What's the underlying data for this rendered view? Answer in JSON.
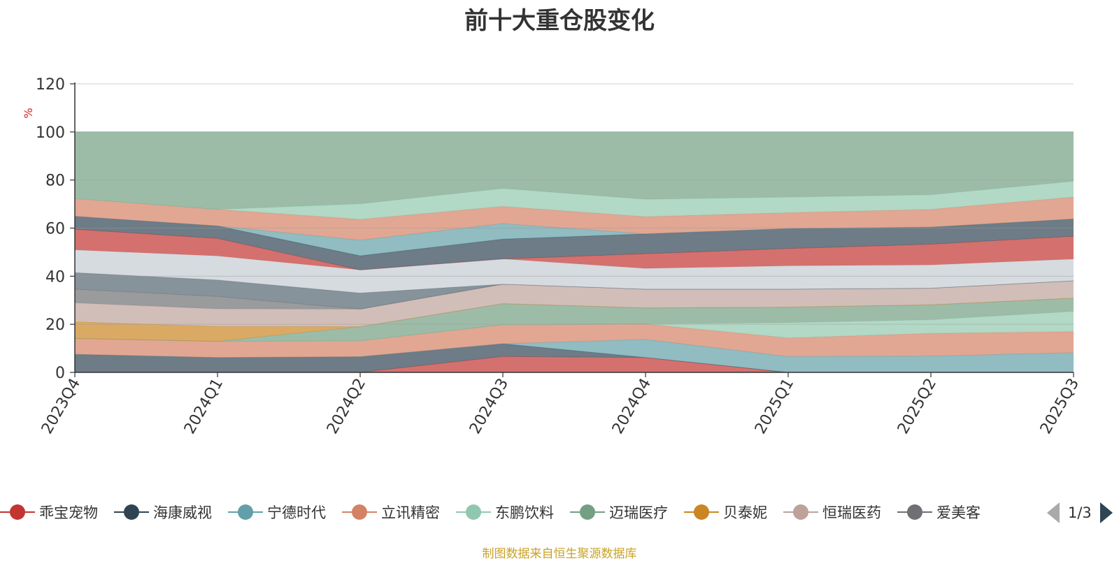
{
  "chart_data": {
    "type": "area",
    "title": "前十大重仓股变化",
    "ylabel": "%",
    "ylim": [
      0,
      120
    ],
    "yticks": [
      0,
      20,
      40,
      60,
      80,
      100,
      120
    ],
    "stacked": true,
    "categories": [
      "2023Q4",
      "2024Q1",
      "2024Q2",
      "2024Q3",
      "2024Q4",
      "2025Q1",
      "2025Q2",
      "2025Q3"
    ],
    "layers": [
      {
        "color": "#c23531",
        "bottom": [
          0,
          0,
          0,
          0,
          0,
          0,
          0,
          0
        ],
        "top": [
          0,
          0,
          0,
          6.6,
          6.2,
          0,
          0,
          0
        ]
      },
      {
        "color": "#2f4554",
        "bottom": [
          0,
          0,
          0,
          6.6,
          6.2,
          0,
          0,
          0
        ],
        "top": [
          7.5,
          6.2,
          6.5,
          11.9,
          6.2,
          0,
          0,
          0
        ]
      },
      {
        "color": "#61a0a8",
        "bottom": [
          7.5,
          6.2,
          6.5,
          11.9,
          6.2,
          0,
          0,
          0
        ],
        "top": [
          7.5,
          6.2,
          6.5,
          11.9,
          13.7,
          6.6,
          6.8,
          8.2
        ]
      },
      {
        "color": "#d48265",
        "bottom": [
          7.5,
          6.2,
          6.5,
          11.9,
          13.7,
          6.6,
          6.8,
          8.2
        ],
        "top": [
          14.1,
          12.9,
          13.1,
          19.8,
          20.1,
          14.3,
          16.2,
          16.9
        ]
      },
      {
        "color": "#91c7ae",
        "bottom": [
          14.1,
          12.9,
          13.1,
          19.8,
          20.1,
          14.3,
          16.2,
          16.9
        ],
        "top": [
          14.1,
          12.9,
          13.1,
          19.8,
          20.1,
          20.7,
          21.9,
          25.4
        ]
      },
      {
        "color": "#749f83",
        "bottom": [
          14.1,
          12.9,
          13.1,
          19.8,
          20.1,
          20.7,
          21.9,
          25.4
        ],
        "top": [
          14.1,
          12.9,
          19.0,
          28.6,
          26.8,
          27.1,
          28.1,
          30.9
        ]
      },
      {
        "color": "#ca8622",
        "bottom": [
          14.1,
          12.9,
          19.0,
          28.6,
          26.8,
          27.1,
          28.1,
          30.9
        ],
        "top": [
          21.0,
          19.1,
          19.0,
          28.6,
          26.8,
          27.1,
          28.1,
          30.9
        ]
      },
      {
        "color": "#bda29a",
        "bottom": [
          21.0,
          19.1,
          19.0,
          28.6,
          26.8,
          27.1,
          28.1,
          30.9
        ],
        "top": [
          28.9,
          26.4,
          26.3,
          36.7,
          34.6,
          34.6,
          35.0,
          38.1
        ]
      },
      {
        "color": "#6e7074",
        "bottom": [
          28.9,
          26.4,
          26.3,
          36.7,
          34.6,
          34.6,
          35.0,
          38.1
        ],
        "top": [
          34.6,
          31.6,
          26.3,
          36.7,
          34.6,
          34.6,
          35.0,
          38.1
        ]
      },
      {
        "color": "#546570",
        "bottom": [
          34.6,
          31.6,
          26.3,
          36.7,
          34.6,
          34.6,
          35.0,
          38.1
        ],
        "top": [
          41.5,
          38.4,
          33.0,
          36.7,
          34.6,
          34.6,
          35.0,
          38.1
        ]
      },
      {
        "color": "#c4ccd3",
        "bottom": [
          41.5,
          38.4,
          33.0,
          36.7,
          34.6,
          34.6,
          35.0,
          38.1
        ],
        "top": [
          50.9,
          48.4,
          42.6,
          47.2,
          43.2,
          44.3,
          44.7,
          47.1
        ]
      },
      {
        "color": "#c23531",
        "bottom": [
          50.9,
          48.4,
          42.6,
          47.2,
          43.2,
          44.3,
          44.7,
          47.1
        ],
        "top": [
          59.5,
          55.7,
          42.6,
          47.2,
          49.3,
          51.5,
          53.3,
          56.6
        ]
      },
      {
        "color": "#2f4554",
        "bottom": [
          59.5,
          55.7,
          42.6,
          47.2,
          49.3,
          51.5,
          53.3,
          56.6
        ],
        "top": [
          64.9,
          60.9,
          48.5,
          55.4,
          57.6,
          59.8,
          60.4,
          63.8
        ]
      },
      {
        "color": "#61a0a8",
        "bottom": [
          64.9,
          60.9,
          48.5,
          55.4,
          57.6,
          59.8,
          60.4,
          63.8
        ],
        "top": [
          64.9,
          60.9,
          55.0,
          61.9,
          57.6,
          59.8,
          60.4,
          63.8
        ]
      },
      {
        "color": "#d48265",
        "bottom": [
          64.9,
          60.9,
          55.0,
          61.9,
          57.6,
          59.8,
          60.4,
          63.8
        ],
        "top": [
          72.3,
          67.8,
          63.6,
          69.0,
          64.7,
          66.4,
          67.8,
          72.9
        ]
      },
      {
        "color": "#91c7ae",
        "bottom": [
          72.3,
          67.8,
          63.6,
          69.0,
          64.7,
          66.4,
          67.8,
          72.9
        ],
        "top": [
          72.3,
          67.8,
          70.1,
          76.5,
          72.0,
          72.9,
          73.9,
          79.5
        ]
      },
      {
        "color": "#749f83",
        "bottom": [
          72.3,
          67.8,
          70.1,
          76.5,
          72.0,
          72.9,
          73.9,
          79.5
        ],
        "top": [
          100,
          100,
          100,
          100,
          100,
          100,
          100,
          100
        ]
      }
    ],
    "legend": [
      {
        "name": "乖宝宠物",
        "color": "#c23531"
      },
      {
        "name": "海康威视",
        "color": "#2f4554"
      },
      {
        "name": "宁德时代",
        "color": "#61a0a8"
      },
      {
        "name": "立讯精密",
        "color": "#d48265"
      },
      {
        "name": "东鹏饮料",
        "color": "#91c7ae"
      },
      {
        "name": "迈瑞医疗",
        "color": "#749f83"
      },
      {
        "name": "贝泰妮",
        "color": "#ca8622"
      },
      {
        "name": "恒瑞医药",
        "color": "#bda29a"
      },
      {
        "name": "爱美客",
        "color": "#6e7074"
      }
    ],
    "legend_position": "bottom",
    "grid": true
  },
  "pager": {
    "text": "1/3"
  },
  "source": "制图数据来自恒生聚源数据库"
}
